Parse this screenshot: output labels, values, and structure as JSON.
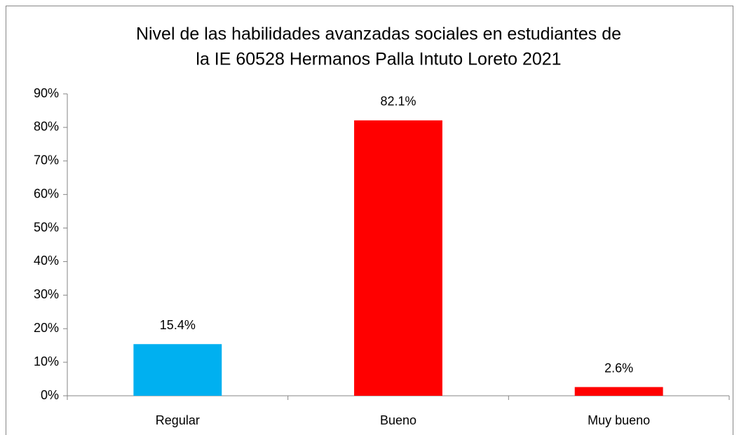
{
  "chart_data": {
    "type": "bar",
    "title": [
      "Nivel de las habilidades avanzadas sociales en estudiantes de",
      "la IE 60528 Hermanos Palla Intuto Loreto 2021"
    ],
    "categories": [
      "Regular",
      "Bueno",
      "Muy bueno"
    ],
    "values": [
      15.4,
      82.1,
      2.6
    ],
    "value_labels": [
      "15.4%",
      "82.1%",
      "2.6%"
    ],
    "colors": [
      "#00b0f0",
      "#ff0000",
      "#ff0000"
    ],
    "ylim": [
      0,
      90
    ],
    "yticks": [
      {
        "value": 0,
        "label": "0%"
      },
      {
        "value": 10,
        "label": "10%"
      },
      {
        "value": 20,
        "label": "20%"
      },
      {
        "value": 30,
        "label": "30%"
      },
      {
        "value": 40,
        "label": "40%"
      },
      {
        "value": 50,
        "label": "50%"
      },
      {
        "value": 60,
        "label": "60%"
      },
      {
        "value": 70,
        "label": "70%"
      },
      {
        "value": 80,
        "label": "80%"
      },
      {
        "value": 90,
        "label": "90%"
      }
    ],
    "grid": false
  }
}
